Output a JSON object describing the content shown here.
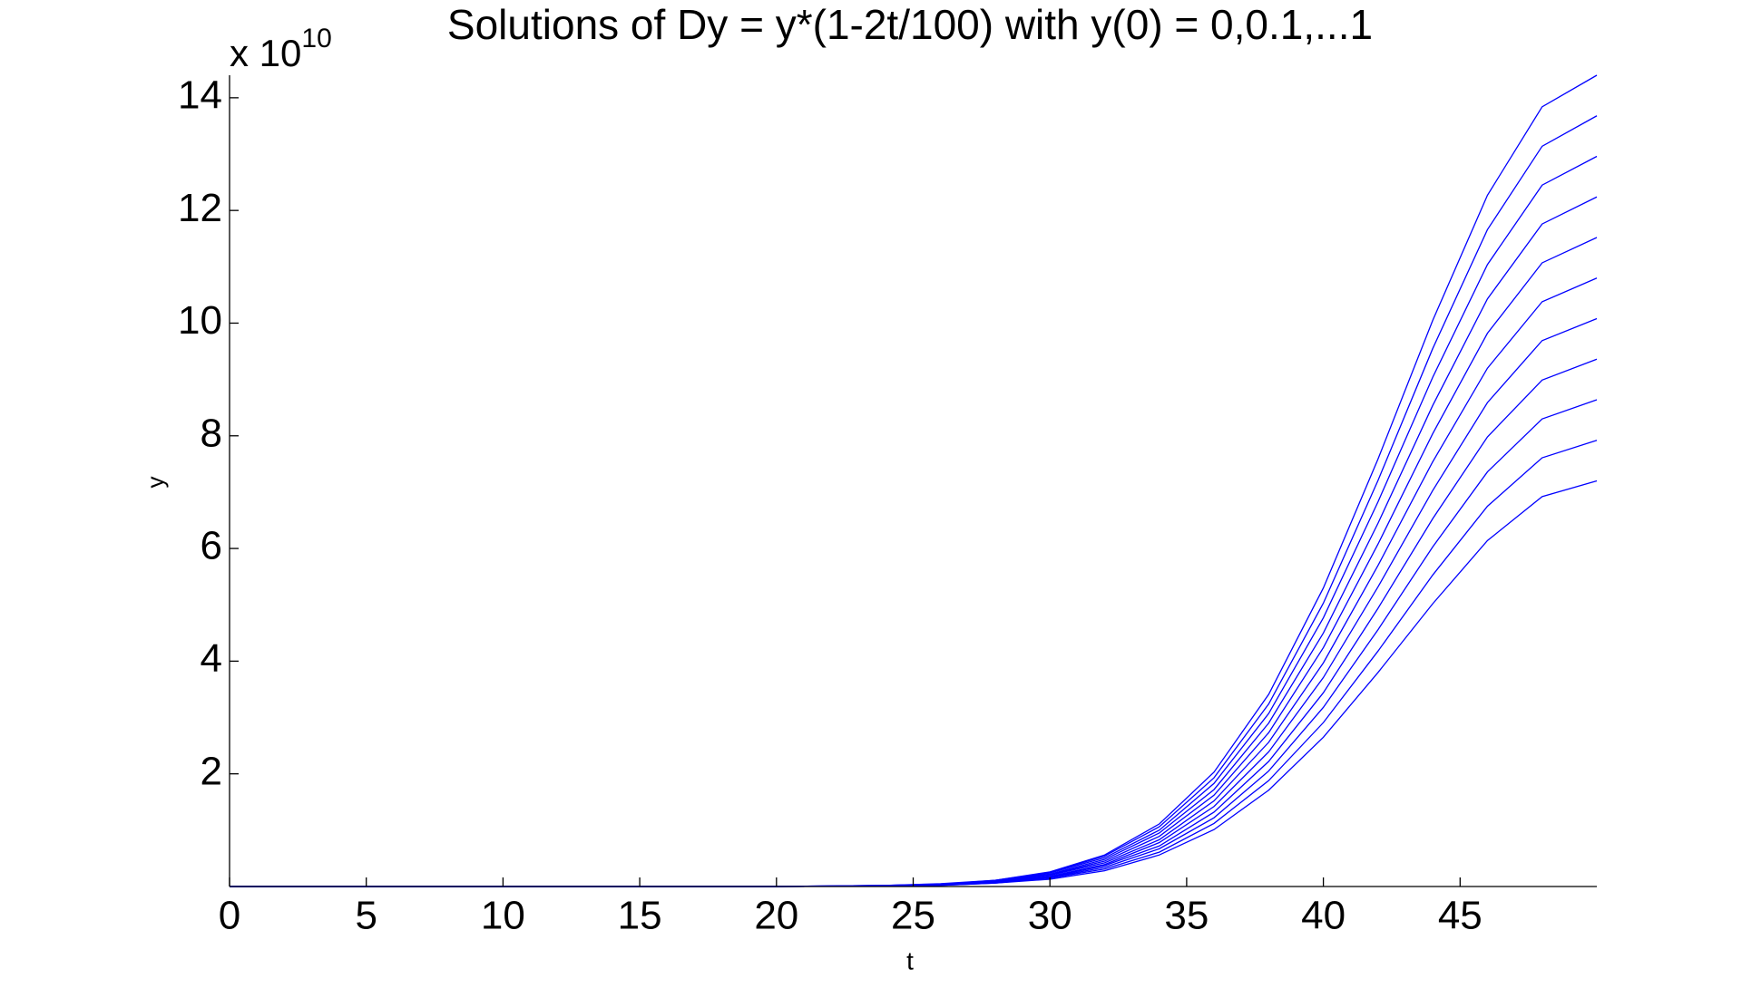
{
  "chart_data": {
    "type": "line",
    "title": "Solutions of Dy = y*(1-2t/100) with y(0) = 0,0.1,...1",
    "x_label": "t",
    "y_label": "y",
    "y_multiplier": {
      "base": "x 10",
      "exponent": "10"
    },
    "x": [
      0,
      10,
      20,
      24,
      26,
      28,
      30,
      32,
      34,
      36,
      38,
      40,
      42,
      44,
      46,
      48,
      50
    ],
    "series": [
      {
        "color": "#0000ff",
        "values": [
          0,
          0,
          0,
          0.01,
          0.02,
          0.06,
          0.13,
          0.28,
          0.56,
          1.01,
          1.71,
          2.65,
          3.8,
          5.02,
          6.14,
          6.92,
          7.2
        ]
      },
      {
        "color": "#0000ff",
        "values": [
          0,
          0,
          0,
          0.01,
          0.02,
          0.06,
          0.15,
          0.31,
          0.61,
          1.12,
          1.88,
          2.91,
          4.18,
          5.53,
          6.75,
          7.61,
          7.92
        ]
      },
      {
        "color": "#0000ff",
        "values": [
          0,
          0,
          0,
          0.01,
          0.03,
          0.07,
          0.16,
          0.34,
          0.67,
          1.22,
          2.05,
          3.18,
          4.56,
          6.03,
          7.36,
          8.3,
          8.64
        ]
      },
      {
        "color": "#0000ff",
        "values": [
          0,
          0,
          0,
          0.01,
          0.03,
          0.07,
          0.17,
          0.37,
          0.72,
          1.32,
          2.22,
          3.44,
          4.94,
          6.53,
          7.98,
          8.99,
          9.36
        ]
      },
      {
        "color": "#0000ff",
        "values": [
          0,
          0,
          0,
          0.01,
          0.03,
          0.08,
          0.18,
          0.39,
          0.78,
          1.42,
          2.39,
          3.71,
          5.32,
          7.03,
          8.59,
          9.69,
          10.08
        ]
      },
      {
        "color": "#0000ff",
        "values": [
          0,
          0,
          0,
          0.01,
          0.03,
          0.09,
          0.2,
          0.42,
          0.83,
          1.52,
          2.56,
          3.97,
          5.7,
          7.54,
          9.2,
          10.38,
          10.8
        ]
      },
      {
        "color": "#0000ff",
        "values": [
          0,
          0,
          0,
          0.01,
          0.04,
          0.09,
          0.21,
          0.45,
          0.89,
          1.62,
          2.73,
          4.24,
          6.08,
          8.04,
          9.82,
          11.07,
          11.52
        ]
      },
      {
        "color": "#0000ff",
        "values": [
          0,
          0,
          0,
          0.01,
          0.04,
          0.1,
          0.22,
          0.48,
          0.95,
          1.72,
          2.9,
          4.5,
          6.45,
          8.54,
          10.43,
          11.76,
          12.24
        ]
      },
      {
        "color": "#0000ff",
        "values": [
          0,
          0,
          0,
          0.02,
          0.04,
          0.1,
          0.24,
          0.51,
          1.0,
          1.83,
          3.07,
          4.77,
          6.83,
          9.04,
          11.04,
          12.45,
          12.96
        ]
      },
      {
        "color": "#0000ff",
        "values": [
          0,
          0,
          0,
          0.02,
          0.04,
          0.11,
          0.25,
          0.54,
          1.06,
          1.93,
          3.24,
          5.03,
          7.21,
          9.55,
          11.66,
          13.14,
          13.68
        ]
      },
      {
        "color": "#0000ff",
        "values": [
          0,
          0,
          0,
          0.02,
          0.05,
          0.11,
          0.26,
          0.56,
          1.11,
          2.03,
          3.41,
          5.3,
          7.59,
          10.05,
          12.27,
          13.84,
          14.4
        ]
      }
    ],
    "xlim": [
      0,
      50
    ],
    "ylim": [
      0,
      14.4
    ],
    "xticks": [
      0,
      5,
      10,
      15,
      20,
      25,
      30,
      35,
      40,
      45
    ],
    "yticks": [
      2,
      4,
      6,
      8,
      10,
      12,
      14
    ],
    "grid": false
  }
}
